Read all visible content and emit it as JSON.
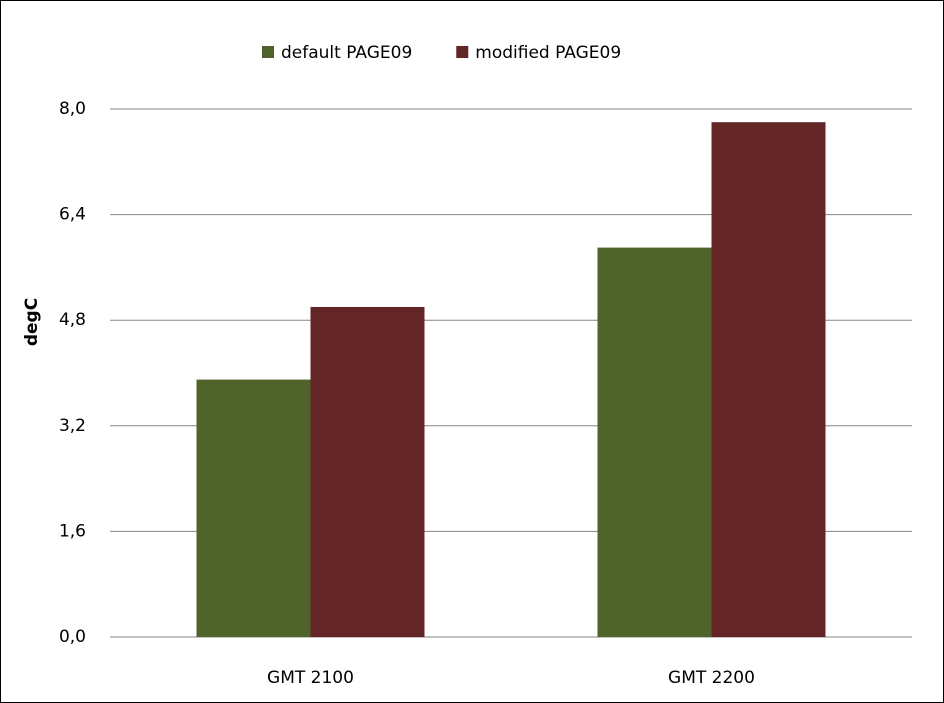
{
  "chart_data": {
    "type": "bar",
    "y_label": "degC",
    "categories": [
      "GMT  2100",
      "GMT  2200"
    ],
    "series": [
      {
        "name": "default PAGE09",
        "color": "#50632a",
        "values": [
          3.9,
          5.9
        ]
      },
      {
        "name": "modified PAGE09",
        "color": "#642527",
        "values": [
          5.0,
          7.8
        ]
      }
    ],
    "ylim": [
      0,
      8
    ],
    "yticks": [
      {
        "value": 0,
        "label": "0,0"
      },
      {
        "value": 1.6,
        "label": "1,6"
      },
      {
        "value": 3.2,
        "label": "3,2"
      },
      {
        "value": 4.8,
        "label": "4,8"
      },
      {
        "value": 6.4,
        "label": "6,4"
      },
      {
        "value": 8,
        "label": "8,0"
      }
    ],
    "grid": true,
    "legend": "top"
  }
}
